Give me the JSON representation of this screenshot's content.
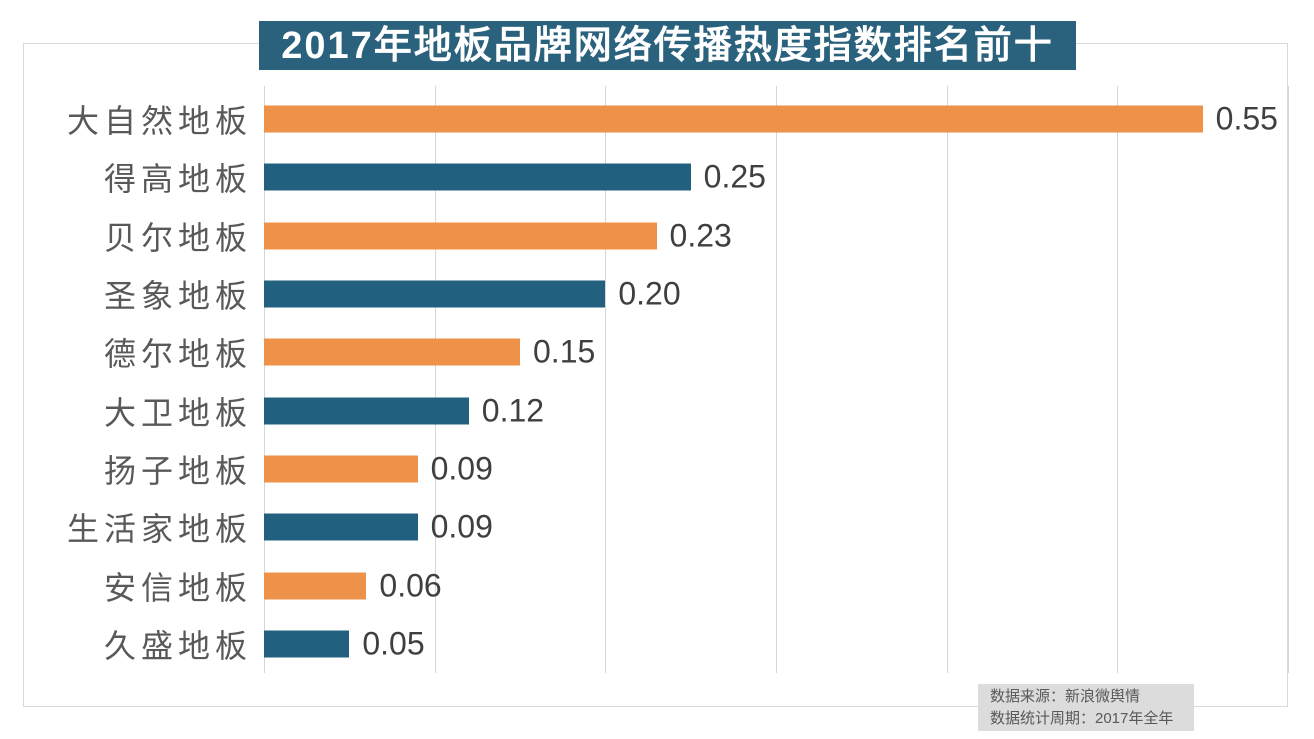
{
  "chart_data": {
    "type": "bar",
    "orientation": "horizontal",
    "title": "2017年地板品牌网络传播热度指数排名前十",
    "categories": [
      "大自然地板",
      "得高地板",
      "贝尔地板",
      "圣象地板",
      "德尔地板",
      "大卫地板",
      "扬子地板",
      "生活家地板",
      "安信地板",
      "久盛地板"
    ],
    "values": [
      0.55,
      0.25,
      0.23,
      0.2,
      0.15,
      0.12,
      0.09,
      0.09,
      0.06,
      0.05
    ],
    "value_labels": [
      "0.55",
      "0.25",
      "0.23",
      "0.20",
      "0.15",
      "0.12",
      "0.09",
      "0.09",
      "0.06",
      "0.05"
    ],
    "xlabel": "",
    "ylabel": "",
    "xlim": [
      0,
      0.6
    ],
    "grid_step": 0.1,
    "grid": "vertical-gridlines-only",
    "axis_tick_labels_visible": false,
    "data_labels_position": "end-of-bar",
    "legend": "none",
    "bar_colors_alternating": [
      "#EF9249",
      "#226080"
    ]
  },
  "title_banner": {
    "text": "2017年地板品牌网络传播热度指数排名前十",
    "bg": "#2A617D",
    "fg": "#FFFFFF"
  },
  "source": {
    "line1": "数据来源：新浪微舆情",
    "line2": "数据统计周期：2017年全年"
  },
  "colors": {
    "background": "#FFFFFF",
    "chart_border": "#D9D9D9",
    "gridline": "#D6D6D6",
    "category_label": "#595959",
    "value_label": "#3F3F3F",
    "source_bg": "#DCDCDC",
    "source_fg": "#595959"
  }
}
